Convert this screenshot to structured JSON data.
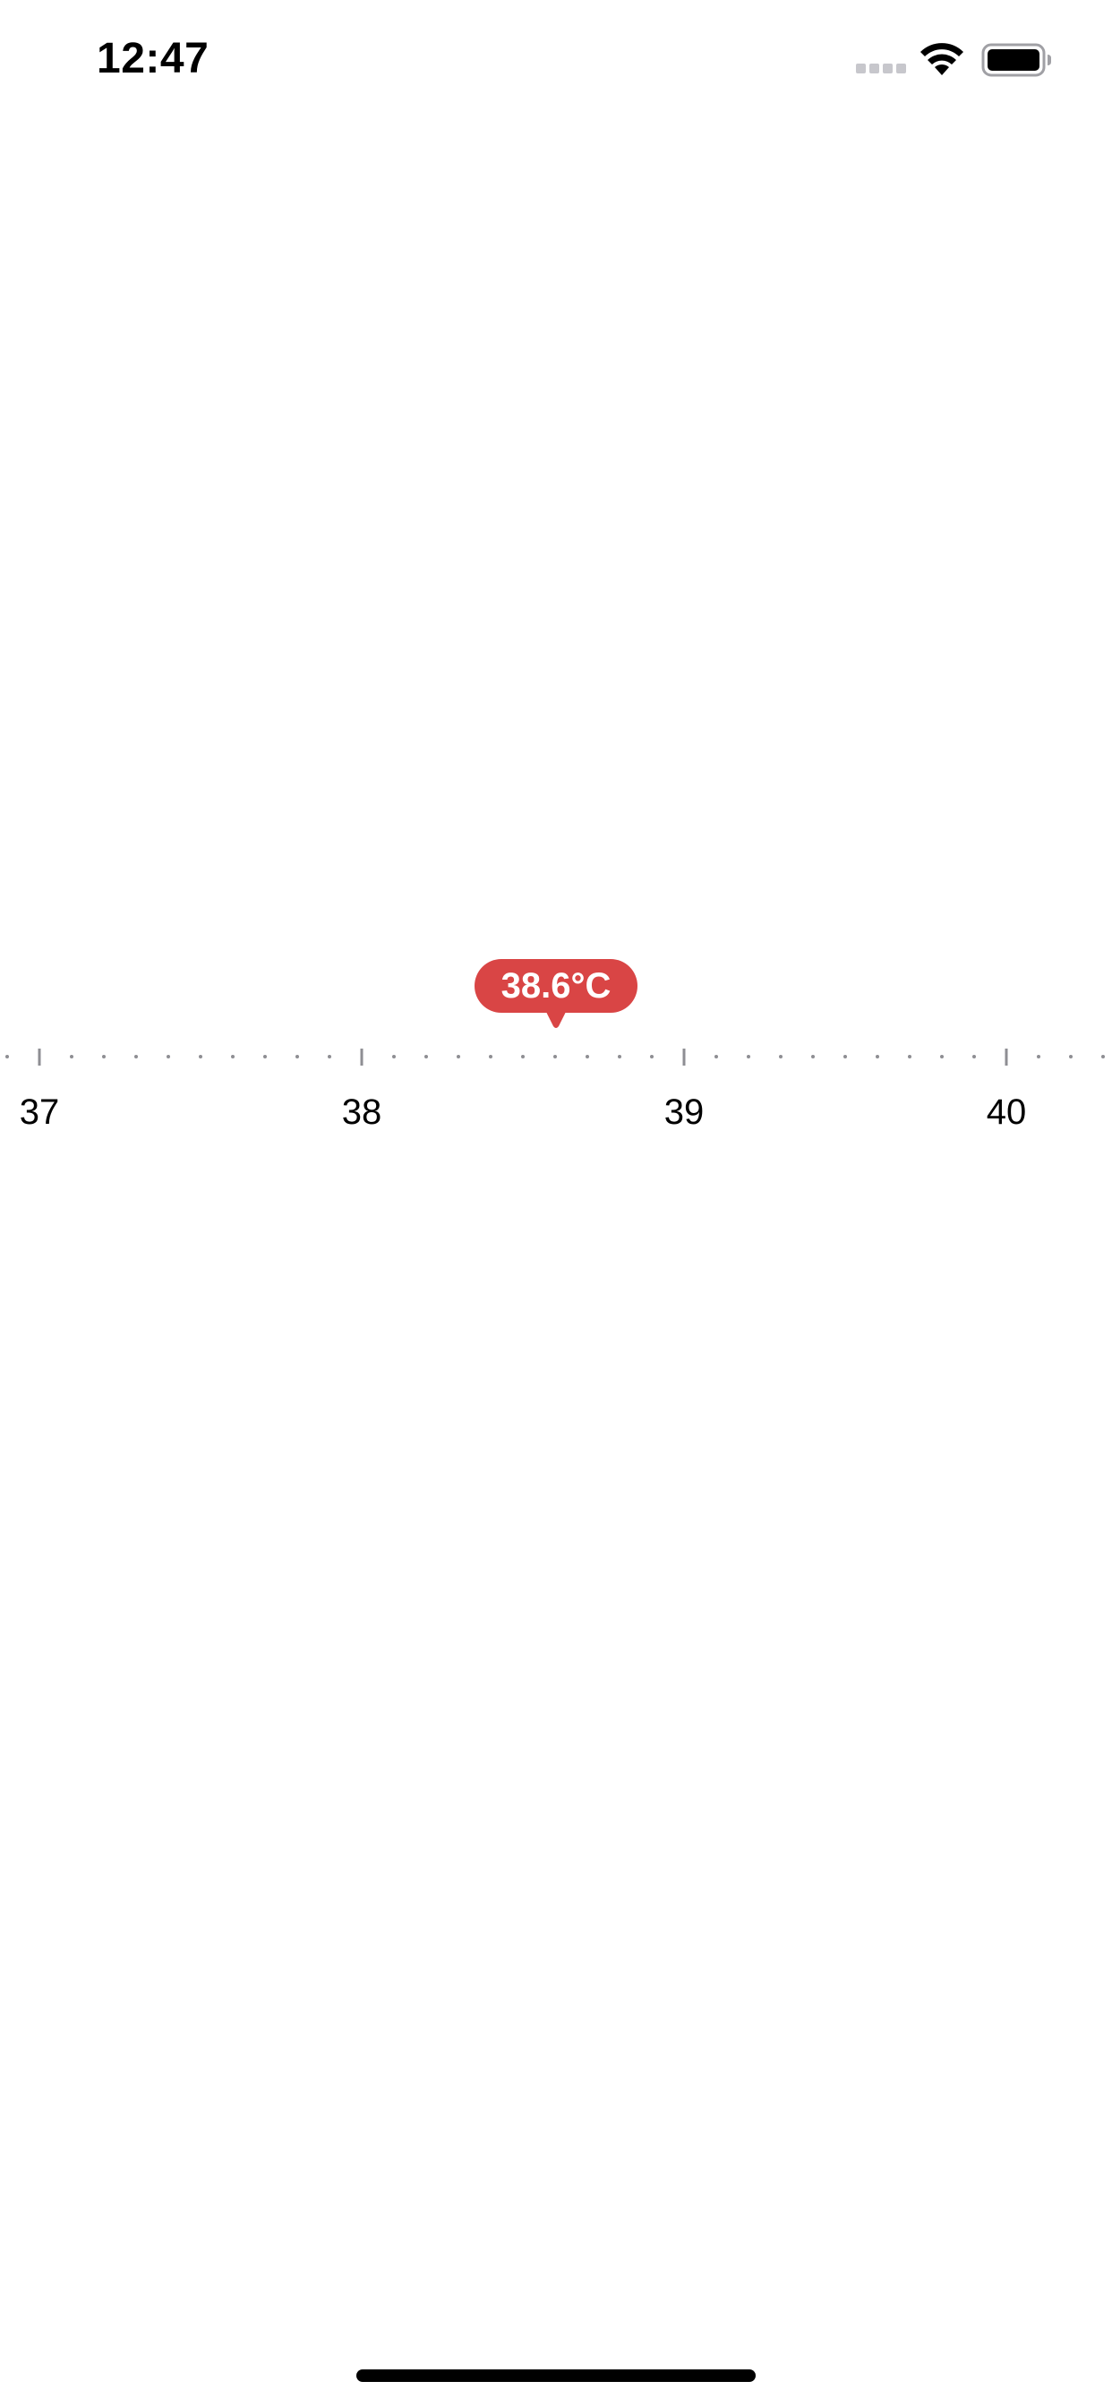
{
  "status_bar": {
    "time": "12:47",
    "icons": [
      "cellular-signal-icon",
      "wifi-icon",
      "battery-icon"
    ]
  },
  "ruler": {
    "labels": [
      "37",
      "38",
      "39",
      "40"
    ],
    "range": [
      36.9,
      40.3
    ],
    "major_step": 1,
    "minor_step": 0.1,
    "selected_value": 38.6,
    "tick_color": "#8e8e93"
  },
  "bubble": {
    "value_text": "38.6°C",
    "color": "#d94545"
  }
}
